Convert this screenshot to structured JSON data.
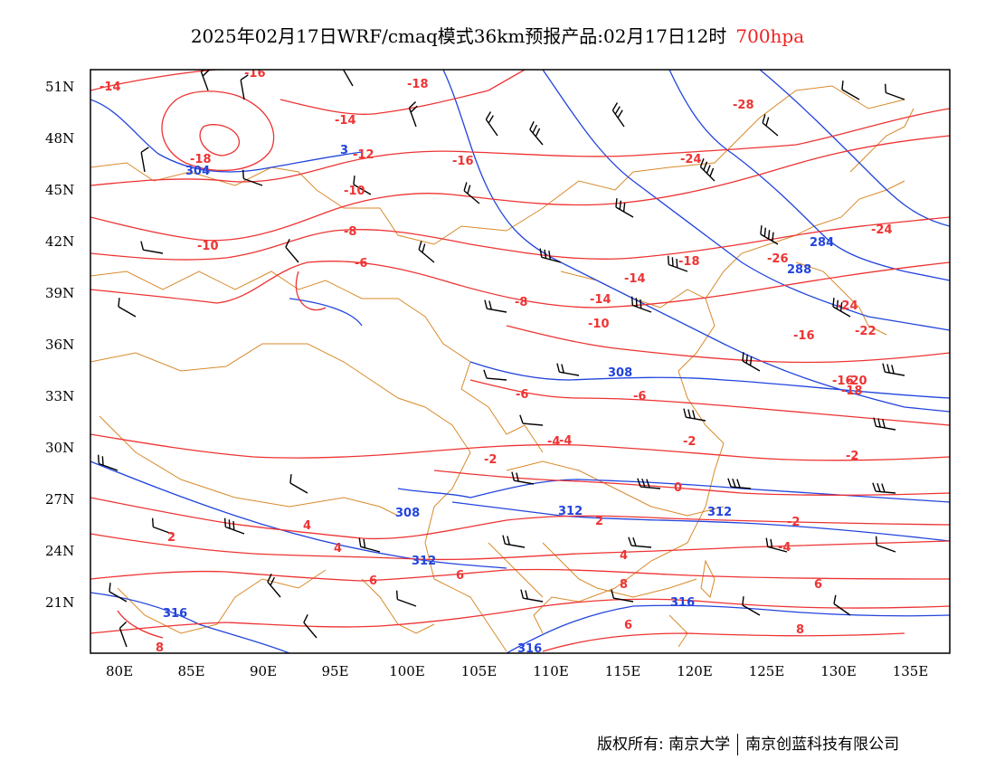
{
  "title": {
    "main": "2025年02月17日WRF/cmaq模式36km预报产品:02月17日12时",
    "level": "700hpa"
  },
  "axes": {
    "lat_labels": [
      "51N",
      "48N",
      "45N",
      "42N",
      "39N",
      "36N",
      "33N",
      "30N",
      "27N",
      "24N",
      "21N"
    ],
    "lon_labels": [
      "80E",
      "85E",
      "90E",
      "95E",
      "100E",
      "105E",
      "110E",
      "115E",
      "120E",
      "125E",
      "130E",
      "135E"
    ]
  },
  "colors": {
    "temperature": "#ee3333",
    "height": "#2244dd",
    "borders": "#d88a2a",
    "wind": "#000000"
  },
  "temperature_labels": [
    "-14",
    "-16",
    "-18",
    "-18",
    "-14",
    "-12",
    "-16",
    "-10",
    "-8",
    "-6",
    "-10",
    "-28",
    "-24",
    "-24",
    "-26",
    "-16",
    "-18",
    "-14",
    "-14",
    "-10",
    "-24",
    "-22",
    "-16",
    "-20",
    "-18",
    "-8",
    "-6",
    "-4",
    "-6",
    "-2",
    "-2",
    "-2",
    "0",
    "-2",
    "-4",
    "2",
    "4",
    "2",
    "4",
    "-4",
    "6",
    "4",
    "6",
    "6",
    "8",
    "6",
    "8",
    "8"
  ],
  "height_labels": [
    "304",
    "3",
    "284",
    "288",
    "308",
    "308",
    "312",
    "312",
    "312",
    "316",
    "316",
    "316"
  ],
  "footer": {
    "left": "版权所有: 南京大学",
    "right": "南京创蓝科技有限公司"
  }
}
